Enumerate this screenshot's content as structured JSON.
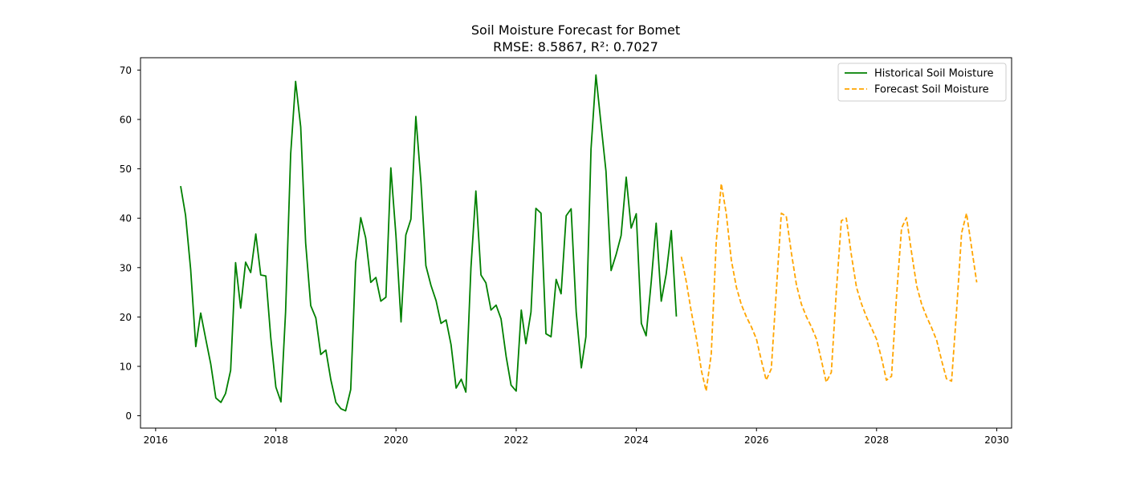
{
  "chart_data": {
    "type": "line",
    "title": "Soil Moisture Forecast for Bomet",
    "subtitle": "RMSE: 8.5867, R²: 0.7027",
    "xlabel": "",
    "ylabel": "",
    "x_scale": "time",
    "xlim": [
      "2015-10-01",
      "2030-04-01"
    ],
    "ylim": [
      -2.5,
      72.5
    ],
    "x_ticks": [
      "2016-01-01",
      "2018-01-01",
      "2020-01-01",
      "2022-01-01",
      "2024-01-01",
      "2026-01-01",
      "2028-01-01",
      "2030-01-01"
    ],
    "x_tick_labels": [
      "2016",
      "2018",
      "2020",
      "2022",
      "2024",
      "2026",
      "2028",
      "2030"
    ],
    "y_ticks": [
      0,
      10,
      20,
      30,
      40,
      50,
      60,
      70
    ],
    "y_tick_labels": [
      "0",
      "10",
      "20",
      "30",
      "40",
      "50",
      "60",
      "70"
    ],
    "grid": false,
    "legend_position": "top-right",
    "series": [
      {
        "name": "Historical Soil Moisture",
        "color": "#008000",
        "style": "solid",
        "x": [
          "2016-06-01",
          "2016-07-01",
          "2016-08-01",
          "2016-09-01",
          "2016-10-01",
          "2016-11-01",
          "2016-12-01",
          "2017-01-01",
          "2017-02-01",
          "2017-03-01",
          "2017-04-01",
          "2017-05-01",
          "2017-06-01",
          "2017-07-01",
          "2017-08-01",
          "2017-09-01",
          "2017-10-01",
          "2017-11-01",
          "2017-12-01",
          "2018-01-01",
          "2018-02-01",
          "2018-03-01",
          "2018-04-01",
          "2018-05-01",
          "2018-06-01",
          "2018-07-01",
          "2018-08-01",
          "2018-09-01",
          "2018-10-01",
          "2018-11-01",
          "2018-12-01",
          "2019-01-01",
          "2019-02-01",
          "2019-03-01",
          "2019-04-01",
          "2019-05-01",
          "2019-06-01",
          "2019-07-01",
          "2019-08-01",
          "2019-09-01",
          "2019-10-01",
          "2019-11-01",
          "2019-12-01",
          "2020-01-01",
          "2020-02-01",
          "2020-03-01",
          "2020-04-01",
          "2020-05-01",
          "2020-06-01",
          "2020-07-01",
          "2020-08-01",
          "2020-09-01",
          "2020-10-01",
          "2020-11-01",
          "2020-12-01",
          "2021-01-01",
          "2021-02-01",
          "2021-03-01",
          "2021-04-01",
          "2021-05-01",
          "2021-06-01",
          "2021-07-01",
          "2021-08-01",
          "2021-09-01",
          "2021-10-01",
          "2021-11-01",
          "2021-12-01",
          "2022-01-01",
          "2022-02-01",
          "2022-03-01",
          "2022-04-01",
          "2022-05-01",
          "2022-06-01",
          "2022-07-01",
          "2022-08-01",
          "2022-09-01",
          "2022-10-01",
          "2022-11-01",
          "2022-12-01",
          "2023-01-01",
          "2023-02-01",
          "2023-03-01",
          "2023-04-01",
          "2023-05-01",
          "2023-06-01",
          "2023-07-01",
          "2023-08-01",
          "2023-09-01",
          "2023-10-01",
          "2023-11-01",
          "2023-12-01",
          "2024-01-01",
          "2024-02-01",
          "2024-03-01",
          "2024-04-01",
          "2024-05-01",
          "2024-06-01",
          "2024-07-01",
          "2024-08-01",
          "2024-09-01"
        ],
        "values": [
          46.5,
          40.6,
          29.6,
          14.0,
          20.8,
          15.5,
          10.5,
          3.6,
          2.7,
          4.5,
          9.2,
          31.0,
          21.8,
          31.1,
          29.0,
          36.8,
          28.5,
          28.3,
          15.8,
          5.8,
          2.8,
          21.0,
          53.0,
          67.7,
          58.5,
          35.0,
          22.3,
          19.8,
          12.4,
          13.3,
          7.3,
          2.7,
          1.4,
          1.0,
          5.3,
          31.0,
          40.1,
          36.0,
          27.0,
          28.0,
          23.2,
          24.0,
          50.2,
          36.5,
          19.0,
          36.6,
          39.8,
          60.6,
          47.3,
          30.4,
          26.4,
          23.3,
          18.7,
          19.4,
          14.4,
          5.6,
          7.4,
          4.8,
          30.0,
          45.5,
          28.5,
          26.9,
          21.4,
          22.4,
          19.6,
          12.0,
          6.2,
          5.0,
          21.4,
          14.6,
          21.0,
          42.0,
          41.0,
          16.6,
          16.0,
          27.6,
          24.7,
          40.5,
          41.9,
          21.0,
          9.7,
          16.0,
          54.0,
          69.0,
          59.0,
          49.5,
          29.4,
          32.7,
          36.5,
          48.3,
          38.0,
          40.9,
          18.7,
          16.2,
          27.1,
          39.0,
          23.2,
          28.7,
          37.5,
          20.1
        ]
      },
      {
        "name": "Forecast Soil Moisture",
        "color": "#ffa500",
        "style": "dashed",
        "x": [
          "2024-10-01",
          "2024-11-01",
          "2024-12-01",
          "2025-01-01",
          "2025-02-01",
          "2025-03-01",
          "2025-04-01",
          "2025-05-01",
          "2025-06-01",
          "2025-07-01",
          "2025-08-01",
          "2025-09-01",
          "2025-10-01",
          "2025-11-01",
          "2025-12-01",
          "2026-01-01",
          "2026-02-01",
          "2026-03-01",
          "2026-04-01",
          "2026-05-01",
          "2026-06-01",
          "2026-07-01",
          "2026-08-01",
          "2026-09-01",
          "2026-10-01",
          "2026-11-01",
          "2026-12-01",
          "2027-01-01",
          "2027-02-01",
          "2027-03-01",
          "2027-04-01",
          "2027-05-01",
          "2027-06-01",
          "2027-07-01",
          "2027-08-01",
          "2027-09-01",
          "2027-10-01",
          "2027-11-01",
          "2027-12-01",
          "2028-01-01",
          "2028-02-01",
          "2028-03-01",
          "2028-04-01",
          "2028-05-01",
          "2028-06-01",
          "2028-07-01",
          "2028-08-01",
          "2028-09-01",
          "2028-10-01",
          "2028-11-01",
          "2028-12-01",
          "2029-01-01",
          "2029-02-01",
          "2029-03-01",
          "2029-04-01",
          "2029-05-01",
          "2029-06-01",
          "2029-07-01",
          "2029-08-01",
          "2029-09-01"
        ],
        "values": [
          32.2,
          27.0,
          21.0,
          15.6,
          9.0,
          5.0,
          12.5,
          35.0,
          47.0,
          41.0,
          31.5,
          26.0,
          22.5,
          20.0,
          18.0,
          15.5,
          11.0,
          7.2,
          9.5,
          25.0,
          41.0,
          40.4,
          33.0,
          26.5,
          22.6,
          20.0,
          18.0,
          15.5,
          11.0,
          6.8,
          8.8,
          25.0,
          39.5,
          40.0,
          32.5,
          26.0,
          22.7,
          20.0,
          17.8,
          15.5,
          11.6,
          7.2,
          8.0,
          24.0,
          38.0,
          40.1,
          33.0,
          26.3,
          22.6,
          20.0,
          17.8,
          15.2,
          11.0,
          7.5,
          7.0,
          21.0,
          37.0,
          41.0,
          34.0,
          27.0
        ]
      }
    ]
  }
}
